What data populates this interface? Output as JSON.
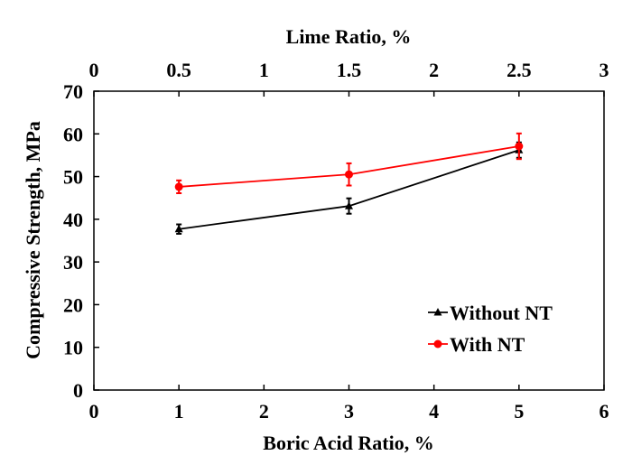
{
  "chart_data": {
    "type": "line",
    "title": "",
    "xlabel": "Boric Acid Ratio, %",
    "x2label": "Lime Ratio, %",
    "ylabel": "Compressive Strength, MPa",
    "xlim": [
      0,
      6
    ],
    "x2lim": [
      0,
      3
    ],
    "ylim": [
      0,
      70
    ],
    "xticks": [
      "0",
      "1",
      "2",
      "3",
      "4",
      "5",
      "6"
    ],
    "x2ticks": [
      "0",
      "0.5",
      "1",
      "1.5",
      "2",
      "2.5",
      "3"
    ],
    "yticks": [
      "0",
      "10",
      "20",
      "30",
      "40",
      "50",
      "60",
      "70"
    ],
    "grid": false,
    "legend_position": "bottom-right",
    "series": [
      {
        "name": "Without NT",
        "color": "#000000",
        "marker": "triangle",
        "x": [
          1,
          3,
          5
        ],
        "y": [
          37.7,
          43.1,
          56.2
        ],
        "err": [
          1.1,
          1.8,
          1.8
        ]
      },
      {
        "name": "With NT",
        "color": "#ff0000",
        "marker": "circle",
        "x": [
          1,
          3,
          5
        ],
        "y": [
          47.6,
          50.5,
          57.1
        ],
        "err": [
          1.5,
          2.6,
          3.0
        ]
      }
    ]
  }
}
